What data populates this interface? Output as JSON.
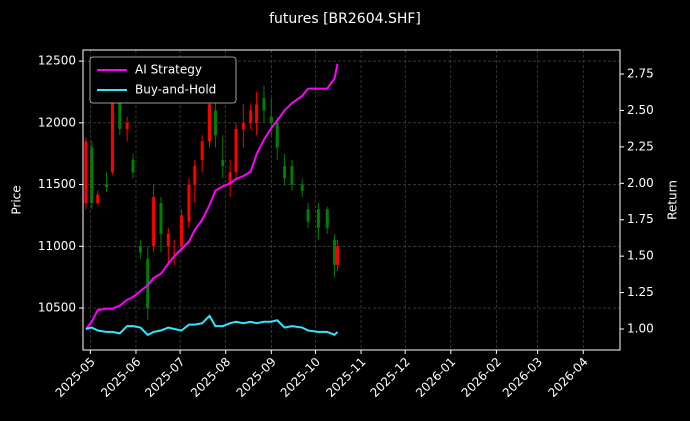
{
  "chart_data": {
    "type": "candlestick",
    "title": "futures [BR2604.SHF]",
    "ylabel": "Price",
    "y2label": "Return",
    "x": [
      "2025-04-28",
      "2025-05-02",
      "2025-05-06",
      "2025-05-12",
      "2025-05-16",
      "2025-05-21",
      "2025-05-26",
      "2025-05-30",
      "2025-06-04",
      "2025-06-09",
      "2025-06-13",
      "2025-06-18",
      "2025-06-23",
      "2025-06-27",
      "2025-07-02",
      "2025-07-07",
      "2025-07-11",
      "2025-07-16",
      "2025-07-21",
      "2025-07-25",
      "2025-07-30",
      "2025-08-04",
      "2025-08-08",
      "2025-08-13",
      "2025-08-18",
      "2025-08-22",
      "2025-08-27",
      "2025-09-01",
      "2025-09-05",
      "2025-09-10",
      "2025-09-15",
      "2025-09-22",
      "2025-09-26",
      "2025-10-03",
      "2025-10-09",
      "2025-10-14",
      "2025-10-16"
    ],
    "open": [
      11350,
      11800,
      11350,
      11500,
      11600,
      12200,
      11950,
      11700,
      11000,
      10900,
      11000,
      11350,
      11000,
      10950,
      11000,
      11200,
      11500,
      11700,
      11850,
      12100,
      11700,
      11500,
      11600,
      11950,
      12000,
      12000,
      12200,
      12050,
      12000,
      11650,
      11650,
      11500,
      11300,
      11300,
      11300,
      11050,
      10850
    ],
    "high": [
      11880,
      11850,
      11450,
      11600,
      12350,
      12250,
      12050,
      11750,
      11050,
      11000,
      11500,
      11400,
      11150,
      11050,
      11300,
      11550,
      11700,
      11900,
      12200,
      12350,
      11900,
      11700,
      12000,
      12150,
      12150,
      12250,
      12300,
      12200,
      12050,
      11750,
      11700,
      11550,
      11350,
      11350,
      11320,
      11100,
      11050
    ],
    "low": [
      11300,
      11300,
      11330,
      11440,
      11580,
      11900,
      11850,
      11550,
      10900,
      10400,
      10950,
      10950,
      10850,
      10850,
      10950,
      11150,
      11350,
      11600,
      11800,
      11800,
      11550,
      11400,
      11550,
      11800,
      11950,
      11900,
      12000,
      11900,
      11700,
      11500,
      11450,
      11400,
      11150,
      11050,
      11100,
      10750,
      10800
    ],
    "close": [
      11850,
      11350,
      11420,
      11480,
      12300,
      11950,
      12000,
      11600,
      10950,
      10500,
      11400,
      11100,
      11100,
      10950,
      11250,
      11500,
      11650,
      11850,
      12150,
      11900,
      11650,
      11600,
      11950,
      12000,
      12100,
      12150,
      12100,
      12000,
      11800,
      11550,
      11500,
      11450,
      11200,
      11150,
      11150,
      10850,
      11000
    ],
    "up_color": "#ff0000",
    "down_color": "#008000",
    "series": [
      {
        "name": "AI Strategy",
        "color": "#ff00ff",
        "axis": "y2",
        "values": [
          1.0,
          1.05,
          1.13,
          1.14,
          1.14,
          1.16,
          1.2,
          1.22,
          1.26,
          1.3,
          1.35,
          1.38,
          1.45,
          1.5,
          1.55,
          1.6,
          1.68,
          1.75,
          1.85,
          1.95,
          1.98,
          2.0,
          2.03,
          2.05,
          2.08,
          2.2,
          2.3,
          2.38,
          2.43,
          2.5,
          2.55,
          2.6,
          2.65,
          2.65,
          2.65,
          2.72,
          2.82
        ]
      },
      {
        "name": "Buy-and-Hold",
        "color": "#33e5ff",
        "axis": "y2",
        "values": [
          1.0,
          1.01,
          0.99,
          0.98,
          0.98,
          0.97,
          1.02,
          1.02,
          1.01,
          0.96,
          0.98,
          0.99,
          1.01,
          1.0,
          0.99,
          1.03,
          1.03,
          1.04,
          1.09,
          1.02,
          1.02,
          1.04,
          1.05,
          1.04,
          1.05,
          1.04,
          1.05,
          1.05,
          1.06,
          1.01,
          1.02,
          1.01,
          0.99,
          0.98,
          0.98,
          0.96,
          0.98
        ]
      }
    ],
    "xlim": [
      "2025-04-26",
      "2026-04-26"
    ],
    "xticks": [
      "2025-05",
      "2025-06",
      "2025-07",
      "2025-08",
      "2025-09",
      "2025-10",
      "2025-11",
      "2025-12",
      "2026-01",
      "2026-02",
      "2026-03",
      "2026-04"
    ],
    "ylim": [
      10160,
      12590
    ],
    "yticks": [
      10500,
      11000,
      11500,
      12000,
      12500
    ],
    "y2lim": [
      0.856,
      2.915
    ],
    "y2ticks": [
      {
        "value": 1,
        "label": "1.00"
      },
      1.25,
      {
        "value": 1.5,
        "label": "1.50"
      },
      1.75,
      {
        "value": 2,
        "label": "2.00"
      },
      2.25,
      {
        "value": 2.5,
        "label": "2.50"
      },
      2.75
    ],
    "grid": true,
    "legend": "upper left"
  }
}
